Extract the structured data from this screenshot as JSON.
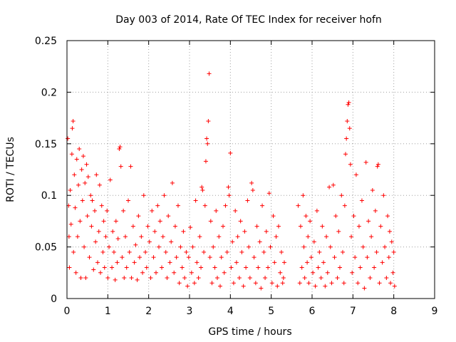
{
  "chart_data": {
    "type": "scatter",
    "title": "Day 003 of 2014, Rate Of TEC Index for receiver hofn",
    "xlabel": "GPS time / hours",
    "ylabel": "ROTI / TECUs",
    "xlim": [
      0,
      9
    ],
    "ylim": [
      0,
      0.25
    ],
    "x_ticks": [
      0,
      1,
      2,
      3,
      4,
      5,
      6,
      7,
      8,
      9
    ],
    "x_tick_labels": [
      "0",
      "1",
      "2",
      "3",
      "4",
      "5",
      "6",
      "7",
      "8",
      "9"
    ],
    "y_ticks": [
      0,
      0.05,
      0.1,
      0.15,
      0.2,
      0.25
    ],
    "y_tick_labels": [
      "0",
      "0.05",
      "0.1",
      "0.15",
      "0.2",
      "0.25"
    ],
    "grid": true,
    "marker": "+",
    "color": "#ff0000",
    "series": [
      {
        "name": "ROTI",
        "points": [
          [
            0.02,
            0.155
          ],
          [
            0.04,
            0.09
          ],
          [
            0.05,
            0.06
          ],
          [
            0.06,
            0.03
          ],
          [
            0.08,
            0.105
          ],
          [
            0.1,
            0.072
          ],
          [
            0.12,
            0.14
          ],
          [
            0.13,
            0.165
          ],
          [
            0.15,
            0.172
          ],
          [
            0.16,
            0.045
          ],
          [
            0.18,
            0.12
          ],
          [
            0.2,
            0.088
          ],
          [
            0.22,
            0.025
          ],
          [
            0.24,
            0.135
          ],
          [
            0.26,
            0.06
          ],
          [
            0.28,
            0.11
          ],
          [
            0.3,
            0.145
          ],
          [
            0.32,
            0.075
          ],
          [
            0.34,
            0.02
          ],
          [
            0.36,
            0.125
          ],
          [
            0.38,
            0.095
          ],
          [
            0.4,
            0.138
          ],
          [
            0.42,
            0.05
          ],
          [
            0.44,
            0.112
          ],
          [
            0.46,
            0.02
          ],
          [
            0.48,
            0.13
          ],
          [
            0.5,
            0.08
          ],
          [
            0.52,
            0.118
          ],
          [
            0.55,
            0.04
          ],
          [
            0.58,
            0.1
          ],
          [
            0.6,
            0.07
          ],
          [
            0.62,
            0.095
          ],
          [
            0.65,
            0.028
          ],
          [
            0.68,
            0.085
          ],
          [
            0.7,
            0.055
          ],
          [
            0.72,
            0.12
          ],
          [
            0.75,
            0.035
          ],
          [
            0.78,
            0.065
          ],
          [
            0.8,
            0.11
          ],
          [
            0.82,
            0.025
          ],
          [
            0.85,
            0.09
          ],
          [
            0.88,
            0.045
          ],
          [
            0.9,
            0.075
          ],
          [
            0.92,
            0.03
          ],
          [
            0.95,
            0.06
          ],
          [
            0.98,
            0.085
          ],
          [
            1.0,
            0.02
          ],
          [
            1.03,
            0.05
          ],
          [
            1.06,
            0.115
          ],
          [
            1.1,
            0.03
          ],
          [
            1.12,
            0.065
          ],
          [
            1.15,
            0.045
          ],
          [
            1.18,
            0.018
          ],
          [
            1.2,
            0.075
          ],
          [
            1.23,
            0.035
          ],
          [
            1.25,
            0.058
          ],
          [
            1.28,
            0.145
          ],
          [
            1.3,
            0.147
          ],
          [
            1.32,
            0.128
          ],
          [
            1.35,
            0.04
          ],
          [
            1.38,
            0.085
          ],
          [
            1.4,
            0.02
          ],
          [
            1.43,
            0.06
          ],
          [
            1.46,
            0.03
          ],
          [
            1.5,
            0.095
          ],
          [
            1.53,
            0.045
          ],
          [
            1.56,
            0.128
          ],
          [
            1.58,
            0.02
          ],
          [
            1.62,
            0.07
          ],
          [
            1.65,
            0.035
          ],
          [
            1.68,
            0.052
          ],
          [
            1.72,
            0.018
          ],
          [
            1.75,
            0.08
          ],
          [
            1.78,
            0.04
          ],
          [
            1.82,
            0.06
          ],
          [
            1.85,
            0.025
          ],
          [
            1.88,
            0.1
          ],
          [
            1.92,
            0.045
          ],
          [
            1.95,
            0.03
          ],
          [
            1.98,
            0.07
          ],
          [
            2.02,
            0.055
          ],
          [
            2.05,
            0.02
          ],
          [
            2.08,
            0.085
          ],
          [
            2.12,
            0.04
          ],
          [
            2.15,
            0.065
          ],
          [
            2.18,
            0.025
          ],
          [
            2.22,
            0.09
          ],
          [
            2.25,
            0.05
          ],
          [
            2.28,
            0.075
          ],
          [
            2.32,
            0.03
          ],
          [
            2.35,
            0.06
          ],
          [
            2.38,
            0.1
          ],
          [
            2.42,
            0.045
          ],
          [
            2.45,
            0.02
          ],
          [
            2.48,
            0.08
          ],
          [
            2.52,
            0.035
          ],
          [
            2.55,
            0.055
          ],
          [
            2.58,
            0.112
          ],
          [
            2.62,
            0.025
          ],
          [
            2.65,
            0.07
          ],
          [
            2.68,
            0.04
          ],
          [
            2.72,
            0.09
          ],
          [
            2.75,
            0.015
          ],
          [
            2.78,
            0.05
          ],
          [
            2.82,
            0.03
          ],
          [
            2.85,
            0.065
          ],
          [
            2.88,
            0.02
          ],
          [
            2.92,
            0.045
          ],
          [
            2.95,
            0.012
          ],
          [
            2.98,
            0.04
          ],
          [
            3.02,
            0.069
          ],
          [
            3.05,
            0.025
          ],
          [
            3.08,
            0.05
          ],
          [
            3.12,
            0.015
          ],
          [
            3.15,
            0.095
          ],
          [
            3.18,
            0.035
          ],
          [
            3.22,
            0.02
          ],
          [
            3.25,
            0.06
          ],
          [
            3.28,
            0.03
          ],
          [
            3.3,
            0.108
          ],
          [
            3.32,
            0.105
          ],
          [
            3.35,
            0.045
          ],
          [
            3.38,
            0.09
          ],
          [
            3.4,
            0.133
          ],
          [
            3.42,
            0.155
          ],
          [
            3.44,
            0.15
          ],
          [
            3.46,
            0.172
          ],
          [
            3.48,
            0.218
          ],
          [
            3.5,
            0.04
          ],
          [
            3.52,
            0.075
          ],
          [
            3.55,
            0.015
          ],
          [
            3.58,
            0.05
          ],
          [
            3.62,
            0.03
          ],
          [
            3.65,
            0.085
          ],
          [
            3.68,
            0.02
          ],
          [
            3.72,
            0.06
          ],
          [
            3.75,
            0.012
          ],
          [
            3.78,
            0.04
          ],
          [
            3.82,
            0.07
          ],
          [
            3.85,
            0.025
          ],
          [
            3.88,
            0.09
          ],
          [
            3.92,
            0.045
          ],
          [
            3.95,
            0.108
          ],
          [
            3.97,
            0.1
          ],
          [
            4.0,
            0.141
          ],
          [
            4.02,
            0.03
          ],
          [
            4.05,
            0.055
          ],
          [
            4.08,
            0.015
          ],
          [
            4.12,
            0.085
          ],
          [
            4.15,
            0.035
          ],
          [
            4.18,
            0.06
          ],
          [
            4.22,
            0.02
          ],
          [
            4.25,
            0.075
          ],
          [
            4.28,
            0.045
          ],
          [
            4.32,
            0.012
          ],
          [
            4.35,
            0.065
          ],
          [
            4.38,
            0.03
          ],
          [
            4.42,
            0.095
          ],
          [
            4.45,
            0.05
          ],
          [
            4.48,
            0.02
          ],
          [
            4.52,
            0.112
          ],
          [
            4.55,
            0.105
          ],
          [
            4.58,
            0.04
          ],
          [
            4.62,
            0.015
          ],
          [
            4.65,
            0.07
          ],
          [
            4.68,
            0.03
          ],
          [
            4.72,
            0.055
          ],
          [
            4.75,
            0.01
          ],
          [
            4.78,
            0.09
          ],
          [
            4.82,
            0.045
          ],
          [
            4.85,
            0.02
          ],
          [
            4.88,
            0.065
          ],
          [
            4.92,
            0.03
          ],
          [
            4.95,
            0.102
          ],
          [
            4.98,
            0.05
          ],
          [
            5.02,
            0.015
          ],
          [
            5.05,
            0.08
          ],
          [
            5.08,
            0.035
          ],
          [
            5.12,
            0.06
          ],
          [
            5.15,
            0.012
          ],
          [
            5.18,
            0.07
          ],
          [
            5.22,
            0.025
          ],
          [
            5.25,
            0.045
          ],
          [
            5.28,
            0.015
          ],
          [
            5.3,
            0.02
          ],
          [
            5.32,
            0.035
          ],
          [
            5.66,
            0.09
          ],
          [
            5.7,
            0.015
          ],
          [
            5.72,
            0.07
          ],
          [
            5.75,
            0.03
          ],
          [
            5.78,
            0.1
          ],
          [
            5.8,
            0.05
          ],
          [
            5.82,
            0.02
          ],
          [
            5.85,
            0.08
          ],
          [
            5.88,
            0.035
          ],
          [
            5.9,
            0.06
          ],
          [
            5.92,
            0.015
          ],
          [
            5.95,
            0.075
          ],
          [
            5.98,
            0.04
          ],
          [
            6.02,
            0.025
          ],
          [
            6.05,
            0.055
          ],
          [
            6.08,
            0.012
          ],
          [
            6.12,
            0.085
          ],
          [
            6.15,
            0.03
          ],
          [
            6.18,
            0.045
          ],
          [
            6.22,
            0.02
          ],
          [
            6.25,
            0.07
          ],
          [
            6.28,
            0.035
          ],
          [
            6.32,
            0.012
          ],
          [
            6.35,
            0.06
          ],
          [
            6.38,
            0.025
          ],
          [
            6.42,
            0.108
          ],
          [
            6.45,
            0.05
          ],
          [
            6.48,
            0.015
          ],
          [
            6.52,
            0.11
          ],
          [
            6.55,
            0.04
          ],
          [
            6.58,
            0.08
          ],
          [
            6.62,
            0.02
          ],
          [
            6.65,
            0.065
          ],
          [
            6.68,
            0.03
          ],
          [
            6.72,
            0.1
          ],
          [
            6.75,
            0.045
          ],
          [
            6.78,
            0.015
          ],
          [
            6.8,
            0.09
          ],
          [
            6.82,
            0.14
          ],
          [
            6.84,
            0.155
          ],
          [
            6.86,
            0.172
          ],
          [
            6.88,
            0.188
          ],
          [
            6.9,
            0.19
          ],
          [
            6.92,
            0.165
          ],
          [
            6.94,
            0.13
          ],
          [
            6.96,
            0.06
          ],
          [
            6.98,
            0.025
          ],
          [
            7.02,
            0.08
          ],
          [
            7.05,
            0.04
          ],
          [
            7.08,
            0.12
          ],
          [
            7.12,
            0.015
          ],
          [
            7.15,
            0.07
          ],
          [
            7.18,
            0.03
          ],
          [
            7.22,
            0.095
          ],
          [
            7.25,
            0.05
          ],
          [
            7.28,
            0.01
          ],
          [
            7.32,
            0.132
          ],
          [
            7.35,
            0.04
          ],
          [
            7.38,
            0.075
          ],
          [
            7.42,
            0.02
          ],
          [
            7.45,
            0.06
          ],
          [
            7.48,
            0.105
          ],
          [
            7.52,
            0.03
          ],
          [
            7.55,
            0.085
          ],
          [
            7.58,
            0.045
          ],
          [
            7.6,
            0.128
          ],
          [
            7.62,
            0.13
          ],
          [
            7.65,
            0.015
          ],
          [
            7.68,
            0.07
          ],
          [
            7.72,
            0.035
          ],
          [
            7.75,
            0.1
          ],
          [
            7.78,
            0.05
          ],
          [
            7.82,
            0.02
          ],
          [
            7.85,
            0.08
          ],
          [
            7.88,
            0.04
          ],
          [
            7.9,
            0.065
          ],
          [
            7.92,
            0.015
          ],
          [
            7.95,
            0.055
          ],
          [
            7.98,
            0.025
          ],
          [
            8.0,
            0.045
          ],
          [
            8.02,
            0.012
          ]
        ]
      }
    ]
  }
}
